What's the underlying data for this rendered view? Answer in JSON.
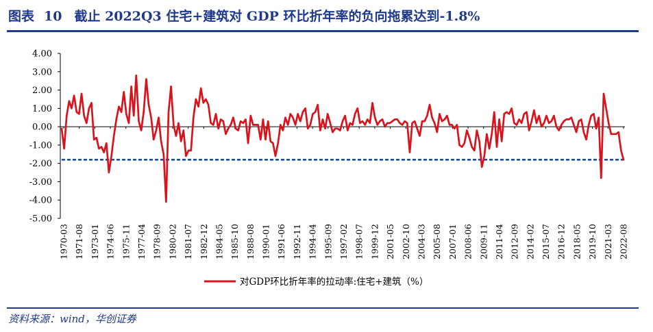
{
  "header": {
    "figure_label": "图表",
    "figure_number": "10",
    "title": "截止 2022Q3 住宅+建筑对 GDP 环比折年率的负向拖累达到-1.8%"
  },
  "source": {
    "text": "资料来源：wind，华创证券"
  },
  "colors": {
    "series": "#d9121b",
    "reference": "#1f4e9a",
    "axis": "#000000",
    "brand": "#1f3a8a"
  },
  "chart_data": {
    "type": "line",
    "title": "截止 2022Q3 住宅+建筑对 GDP 环比折年率的负向拖累达到-1.8%",
    "xlabel": "",
    "ylabel": "",
    "ylim": [
      -5,
      4
    ],
    "yticks": [
      "4.00",
      "3.00",
      "2.00",
      "1.00",
      "0.00",
      "-1.00",
      "-2.00",
      "-3.00",
      "-4.00",
      "-5.00"
    ],
    "x_tick_labels": [
      "1970-03",
      "1971-08",
      "1973-01",
      "1974-06",
      "1975-11",
      "1977-04",
      "1978-09",
      "1980-02",
      "1981-07",
      "1982-12",
      "1984-05",
      "1985-10",
      "1988-08",
      "1990-01",
      "1991-06",
      "1992-11",
      "1994-04",
      "1995-09",
      "1997-02",
      "1998-07",
      "1999-12",
      "2001-05",
      "2002-10",
      "2004-03",
      "2005-08",
      "2007-01",
      "2008-06",
      "2009-11",
      "2011-04",
      "2012-09",
      "2014-02",
      "2015-07",
      "2016-12",
      "2018-05",
      "2019-10",
      "2021-03",
      "2022-08"
    ],
    "legend": {
      "label": "对GDP环比折年率的拉动率:住宅+建筑（%）",
      "position": "bottom-center"
    },
    "reference_line": {
      "value": -1.8,
      "style": "dashed"
    },
    "series": [
      {
        "name": "对GDP环比折年率的拉动率:住宅+建筑（%）",
        "values": [
          -0.1,
          -1.2,
          0.6,
          1.4,
          1.0,
          1.7,
          0.8,
          0.7,
          1.8,
          0.6,
          0.2,
          1.0,
          1.3,
          -0.7,
          -0.6,
          -1.2,
          -1.1,
          -1.4,
          -0.9,
          -2.5,
          -1.6,
          -0.5,
          0.4,
          1.1,
          0.8,
          1.9,
          0.7,
          0.2,
          2.2,
          0.6,
          2.8,
          0.3,
          -0.2,
          0.8,
          2.6,
          1.2,
          0.5,
          -0.7,
          -0.2,
          0.5,
          -0.8,
          -1.5,
          -4.1,
          0.8,
          2.2,
          0.1,
          -0.5,
          0.2,
          -0.8,
          -0.2,
          -1.6,
          -1.3,
          -1.3,
          0.5,
          1.5,
          1.1,
          2.1,
          1.3,
          1.5,
          1.2,
          0.2,
          0.1,
          0.7,
          -0.1,
          0.4,
          0.3,
          -0.4,
          -0.1,
          0.1,
          0.5,
          -0.1,
          -0.2,
          0.3,
          0.2,
          0.4,
          -0.9,
          0.6,
          0.1,
          0.1,
          0.1,
          -0.7,
          0.4,
          -0.7,
          0.3,
          -0.8,
          -0.9,
          -1.6,
          -0.9,
          0.1,
          -0.2,
          0.5,
          0.1,
          0.7,
          0.5,
          0.1,
          0.7,
          0.3,
          0.8,
          1.0,
          -0.1,
          0.1,
          0.7,
          0.8,
          1.2,
          -0.2,
          0.4,
          -0.1,
          0.7,
          0.2,
          -0.3,
          -0.1,
          -0.1,
          -0.2,
          0.3,
          0.6,
          -0.2,
          0.2,
          0.1,
          0.7,
          1.0,
          0.2,
          0.3,
          0.1,
          0.4,
          0.2,
          1.3,
          0.5,
          0.1,
          0.3,
          0.4,
          0.0,
          0.2,
          0.2,
          0.3,
          0.4,
          0.4,
          0.2,
          0.1,
          0.3,
          0.2,
          -1.4,
          0.2,
          0.3,
          -0.1,
          -0.5,
          0.3,
          0.3,
          0.6,
          1.2,
          0.5,
          0.2,
          -0.3,
          0.7,
          0.3,
          0.4,
          0.6,
          0.1,
          0.1,
          -0.1,
          0.1,
          -1.0,
          -1.1,
          -0.9,
          -0.2,
          -0.6,
          -1.1,
          -1.3,
          -0.2,
          -0.8,
          -2.2,
          -1.6,
          -0.4,
          -1.2,
          -0.4,
          0.8,
          -1.1,
          0.4,
          -0.8,
          0.7,
          0.8,
          0.7,
          1.0,
          0.2,
          0.1,
          0.4,
          0.2,
          0.7,
          0.8,
          -0.2,
          0.3,
          0.9,
          0.2,
          0.6,
          0.0,
          0.2,
          0.6,
          0.2,
          0.3,
          0.6,
          0.0,
          -0.2,
          0.1,
          0.3,
          0.4,
          0.4,
          0.5,
          0.1,
          -0.3,
          0.3,
          0.4,
          -0.3,
          -0.7,
          0.1,
          0.6,
          0.7,
          -0.1,
          0.5,
          -2.8,
          1.8,
          1.0,
          0.2,
          -0.4,
          -0.4,
          -0.4,
          -0.3,
          -1.3,
          -1.8
        ]
      }
    ]
  }
}
